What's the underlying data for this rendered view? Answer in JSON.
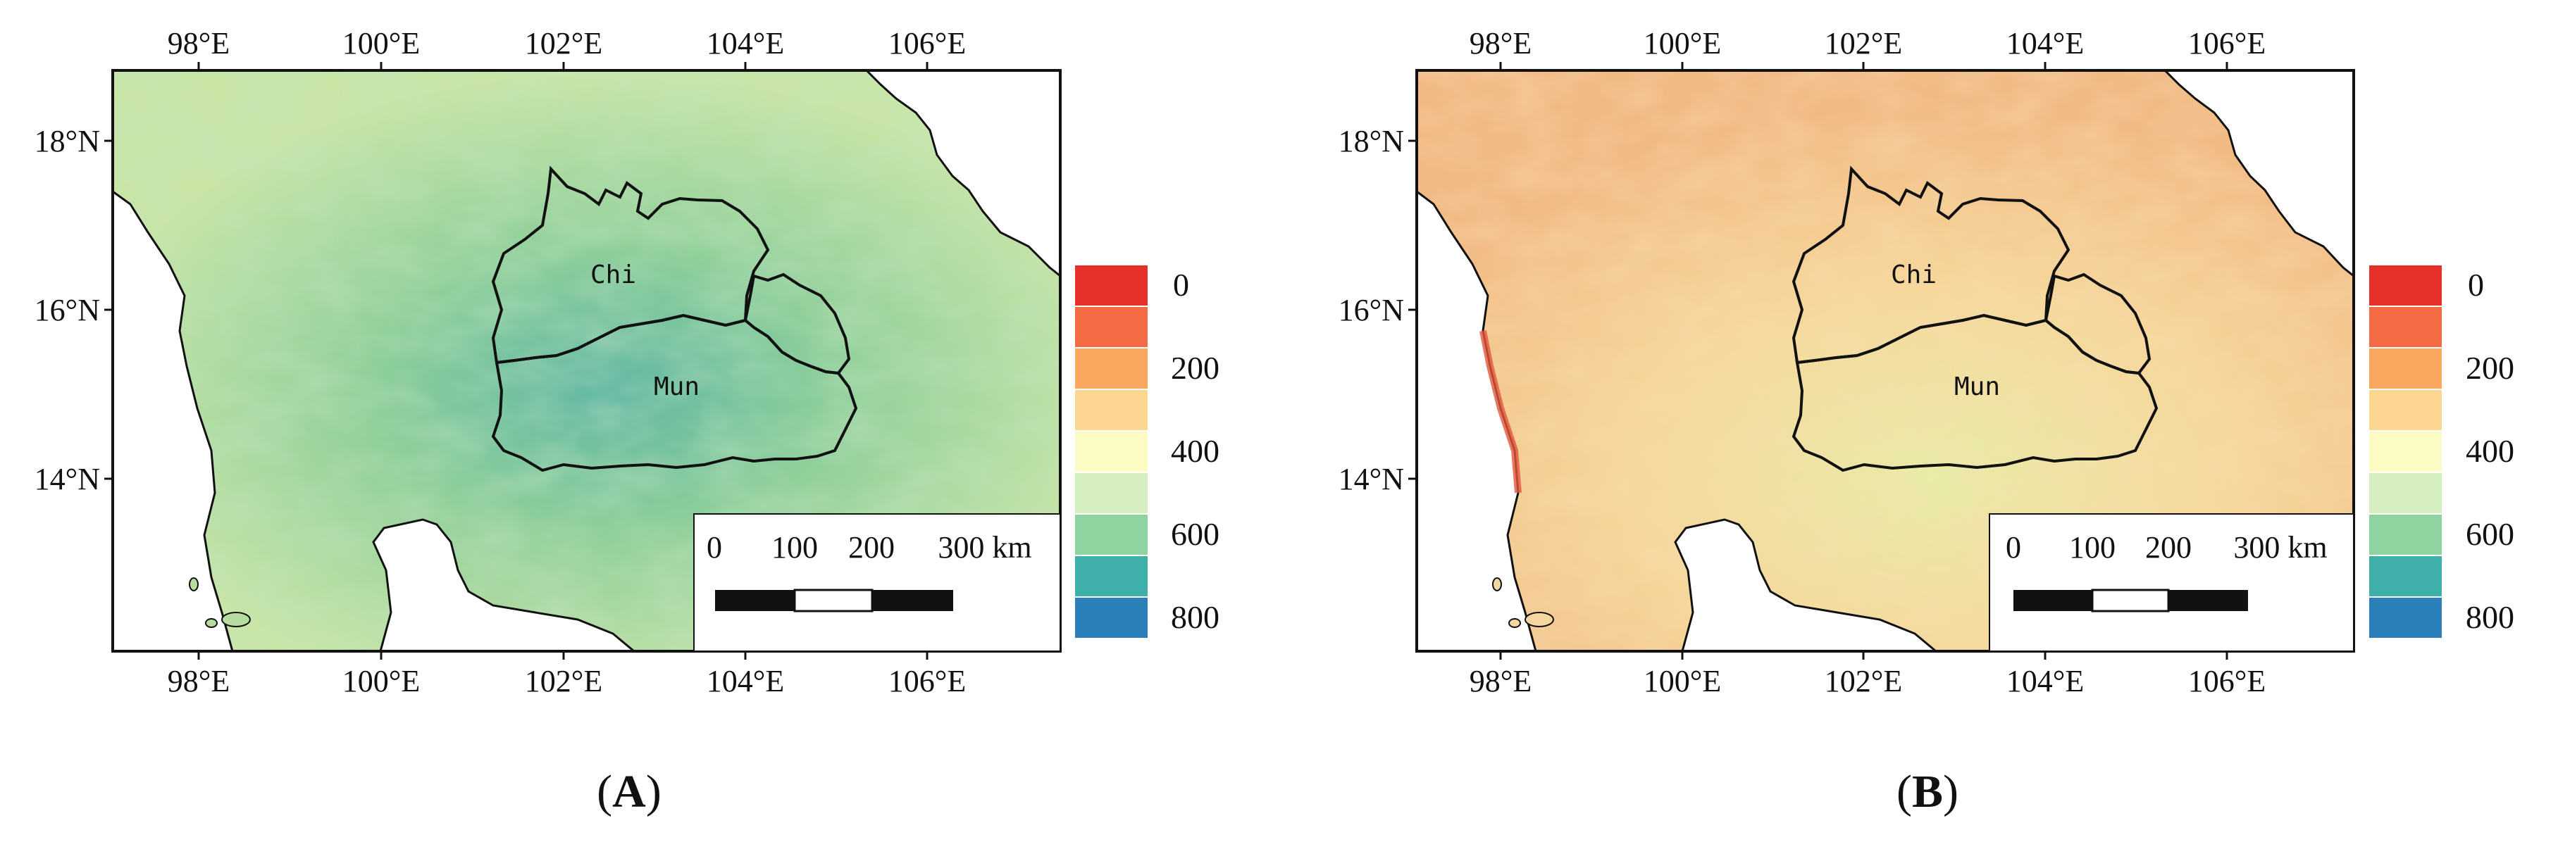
{
  "panels": [
    {
      "id": "A",
      "label": "A",
      "lon_ticks": [
        "98°E",
        "100°E",
        "102°E",
        "104°E",
        "106°E"
      ],
      "lat_ticks": [
        "18°N",
        "16°N",
        "14°N"
      ],
      "basins": [
        "Chi",
        "Mun"
      ],
      "scale_bar": {
        "ticks": [
          "0",
          "100",
          "200",
          "300 km"
        ]
      },
      "legend": {
        "labels": [
          "0",
          "200",
          "400",
          "600",
          "800"
        ]
      },
      "color_theme": "green-blue dominant (higher values)"
    },
    {
      "id": "B",
      "label": "B",
      "lon_ticks": [
        "98°E",
        "100°E",
        "102°E",
        "104°E",
        "106°E"
      ],
      "lat_ticks": [
        "18°N",
        "16°N",
        "14°N"
      ],
      "basins": [
        "Chi",
        "Mun"
      ],
      "scale_bar": {
        "ticks": [
          "0",
          "100",
          "200",
          "300 km"
        ]
      },
      "legend": {
        "labels": [
          "0",
          "200",
          "400",
          "600",
          "800"
        ]
      },
      "color_theme": "orange-yellow dominant (lower values)"
    }
  ],
  "legend_colors": [
    "#e8302a",
    "#f46a45",
    "#f9a65f",
    "#fdd692",
    "#fdfbc4",
    "#d6efc0",
    "#8fd3a0",
    "#3fb0a9",
    "#2b80b9"
  ],
  "colors": {
    "land_A": "#a9d89a",
    "land_B": "#f5cf95",
    "water": "#ffffff",
    "outline": "#111111"
  }
}
